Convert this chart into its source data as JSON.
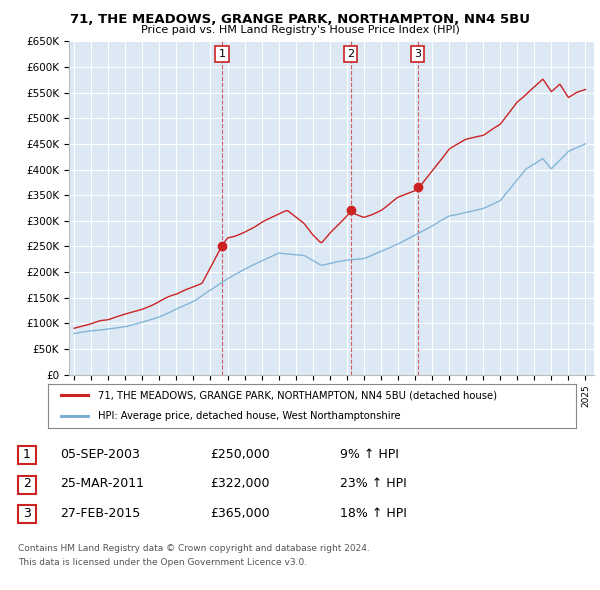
{
  "title1": "71, THE MEADOWS, GRANGE PARK, NORTHAMPTON, NN4 5BU",
  "title2": "Price paid vs. HM Land Registry's House Price Index (HPI)",
  "ylabel_ticks": [
    "£0",
    "£50K",
    "£100K",
    "£150K",
    "£200K",
    "£250K",
    "£300K",
    "£350K",
    "£400K",
    "£450K",
    "£500K",
    "£550K",
    "£600K",
    "£650K"
  ],
  "ytick_values": [
    0,
    50000,
    100000,
    150000,
    200000,
    250000,
    300000,
    350000,
    400000,
    450000,
    500000,
    550000,
    600000,
    650000
  ],
  "hpi_color": "#7bafd4",
  "price_color": "#cc2222",
  "bg_color": "#dce9f5",
  "grid_color": "#ffffff",
  "purchases": [
    {
      "date_num": 2003.67,
      "price": 250000,
      "label": "1"
    },
    {
      "date_num": 2011.23,
      "price": 322000,
      "label": "2"
    },
    {
      "date_num": 2015.16,
      "price": 365000,
      "label": "3"
    }
  ],
  "legend_line1": "71, THE MEADOWS, GRANGE PARK, NORTHAMPTON, NN4 5BU (detached house)",
  "legend_line2": "HPI: Average price, detached house, West Northamptonshire",
  "table_rows": [
    [
      "1",
      "05-SEP-2003",
      "£250,000",
      "9% ↑ HPI"
    ],
    [
      "2",
      "25-MAR-2011",
      "£322,000",
      "23% ↑ HPI"
    ],
    [
      "3",
      "27-FEB-2015",
      "£365,000",
      "18% ↑ HPI"
    ]
  ],
  "footnote1": "Contains HM Land Registry data © Crown copyright and database right 2024.",
  "footnote2": "This data is licensed under the Open Government Licence v3.0.",
  "xlim_min": 1994.7,
  "xlim_max": 2025.5,
  "ylim_min": 0,
  "ylim_max": 650000
}
